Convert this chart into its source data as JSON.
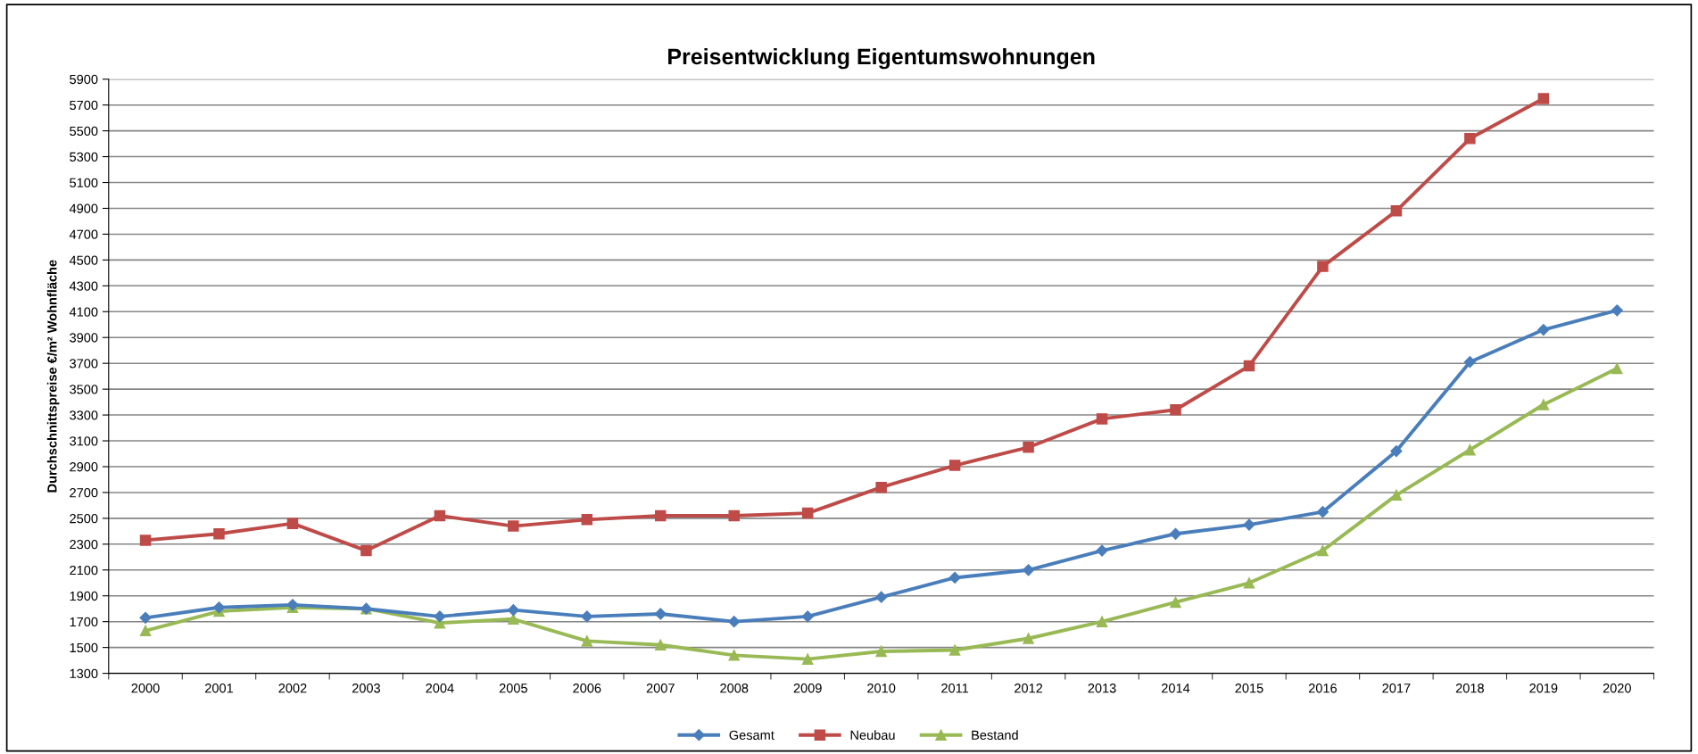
{
  "chart_data": {
    "type": "line",
    "title": "Preisentwicklung Eigentumswohnungen",
    "ylabel": "Durchschnittspreise €/m² Wohnfläche",
    "categories": [
      "2000",
      "2001",
      "2002",
      "2003",
      "2004",
      "2005",
      "2006",
      "2007",
      "2008",
      "2009",
      "2010",
      "2011",
      "2012",
      "2013",
      "2014",
      "2015",
      "2016",
      "2017",
      "2018",
      "2019",
      "2020"
    ],
    "series": [
      {
        "name": "Gesamt",
        "color": "#4a7ebb",
        "marker": "diamond",
        "values": [
          1730,
          1810,
          1830,
          1800,
          1740,
          1790,
          1740,
          1760,
          1700,
          1740,
          1890,
          2040,
          2100,
          2250,
          2380,
          2450,
          2550,
          3020,
          3710,
          3960,
          4110
        ]
      },
      {
        "name": "Neubau",
        "color": "#be4b48",
        "marker": "square",
        "values": [
          2330,
          2380,
          2460,
          2250,
          2520,
          2440,
          2490,
          2520,
          2520,
          2540,
          2740,
          2910,
          3050,
          3270,
          3340,
          3680,
          4450,
          4880,
          5440,
          5750,
          null
        ]
      },
      {
        "name": "Bestand",
        "color": "#98b954",
        "marker": "triangle",
        "values": [
          1630,
          1780,
          1810,
          1800,
          1690,
          1720,
          1550,
          1520,
          1440,
          1410,
          1470,
          1480,
          1570,
          1700,
          1850,
          2000,
          2250,
          2680,
          3030,
          3380,
          3660
        ]
      }
    ],
    "ylim": [
      1300,
      5900
    ],
    "yticks": [
      1300,
      1500,
      1700,
      1900,
      2100,
      2300,
      2500,
      2700,
      2900,
      3100,
      3300,
      3500,
      3700,
      3900,
      4100,
      4300,
      4500,
      4700,
      4900,
      5100,
      5300,
      5500,
      5700,
      5900
    ],
    "grid": "y",
    "legend": "bottom",
    "line_style": "solid"
  }
}
